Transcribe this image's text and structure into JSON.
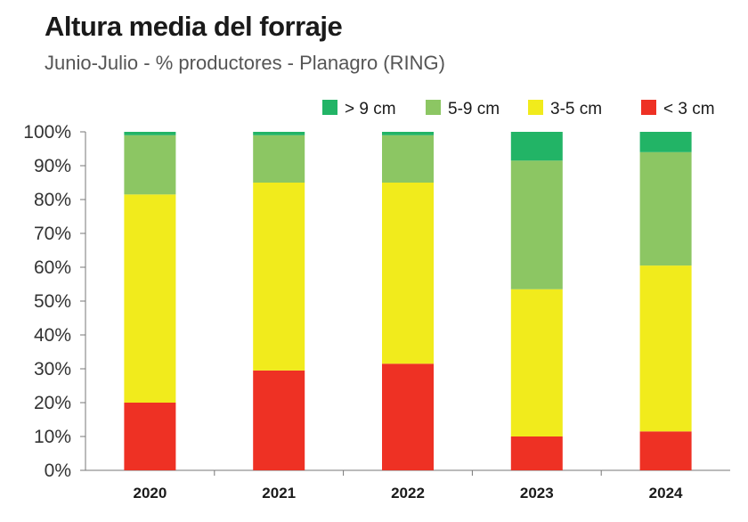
{
  "chart_data": {
    "type": "bar",
    "stacked": true,
    "title": "Altura media del forraje",
    "subtitle": "Junio-Julio - % productores - Planagro (RING)",
    "categories": [
      "2020",
      "2021",
      "2022",
      "2023",
      "2024"
    ],
    "ylim": [
      0,
      100
    ],
    "yticks": [
      "0%",
      "10%",
      "20%",
      "30%",
      "40%",
      "50%",
      "60%",
      "70%",
      "80%",
      "90%",
      "100%"
    ],
    "legend_order": [
      "> 9 cm",
      "5-9 cm",
      "3-5 cm",
      "< 3 cm"
    ],
    "legend_position": "top-right",
    "series": [
      {
        "name": "< 3 cm",
        "color": "#ee3124",
        "values": [
          20,
          29.5,
          31.5,
          10,
          11.5
        ]
      },
      {
        "name": "3-5 cm",
        "color": "#f1eb1c",
        "values": [
          61.5,
          55.5,
          53.5,
          43.5,
          49
        ]
      },
      {
        "name": "5-9 cm",
        "color": "#8cc663",
        "values": [
          17.5,
          14,
          14,
          38,
          33.5
        ]
      },
      {
        "name": "> 9 cm",
        "color": "#22b466",
        "values": [
          1,
          1,
          1,
          8.5,
          6
        ]
      }
    ]
  }
}
